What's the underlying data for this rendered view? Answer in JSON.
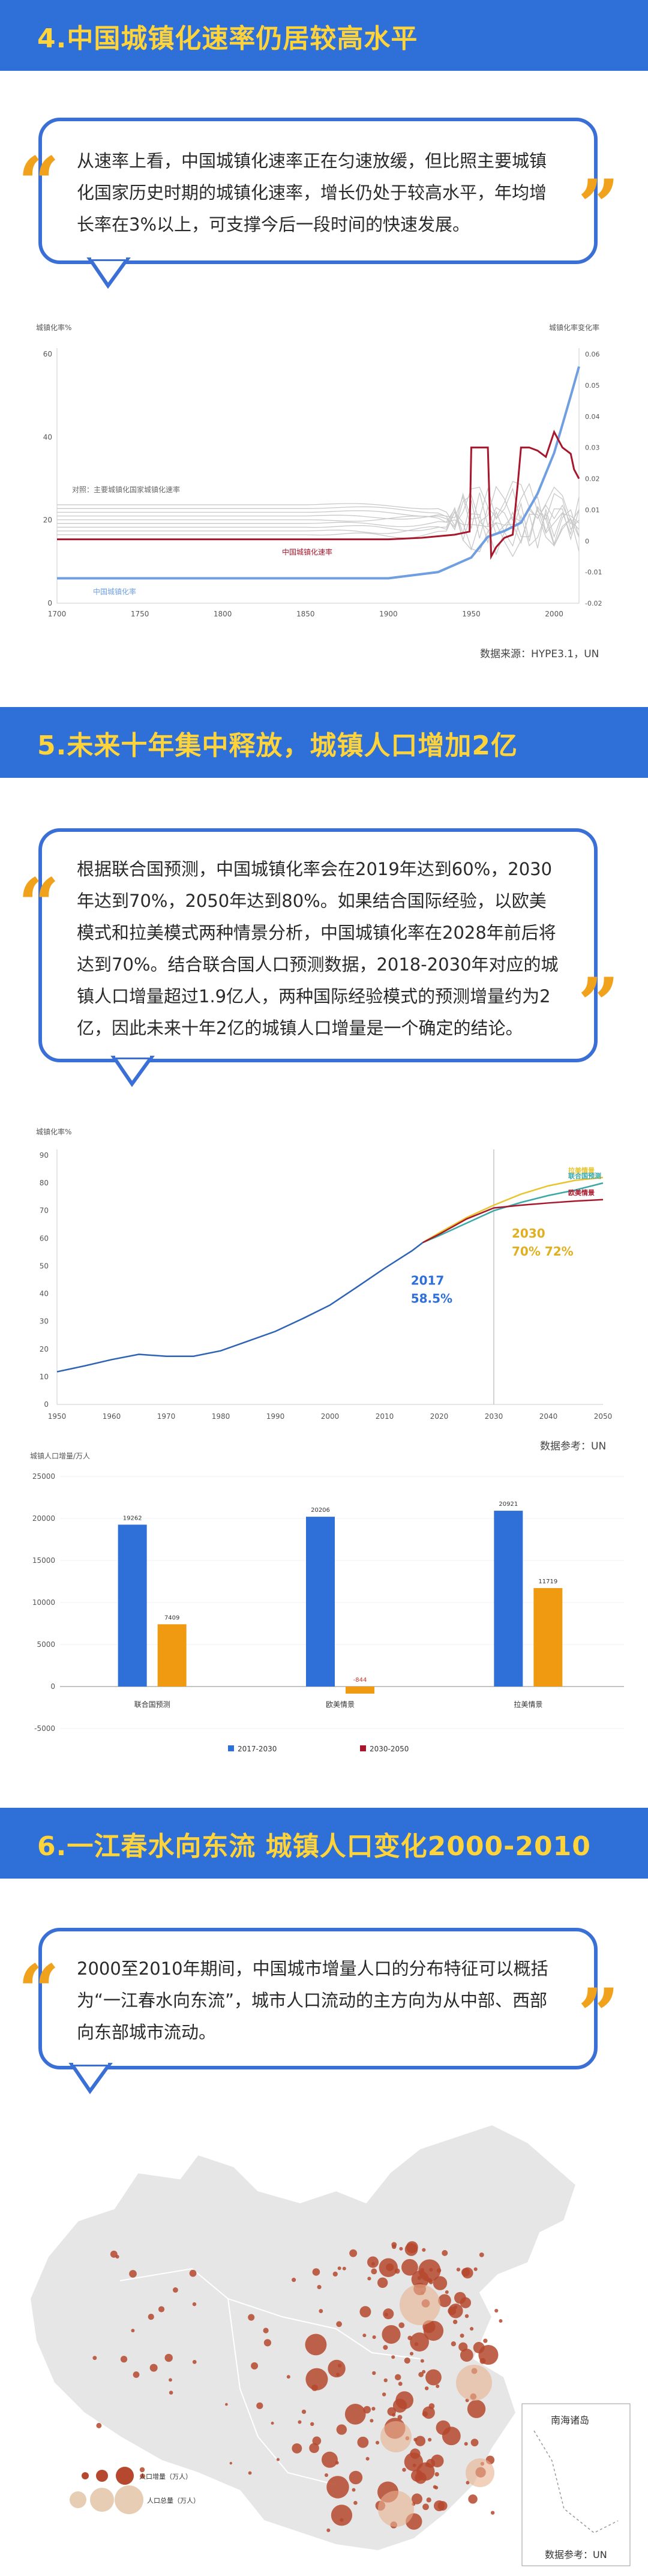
{
  "sections": [
    {
      "title": "4.中国城镇化速率仍居较高水平",
      "quote": "从速率上看，中国城镇化速率正在匀速放缓，但比照主要城镇化国家历史时期的城镇化速率，增长仍处于较高水平，年均增长率在3%以上，可支撑今后一段时间的快速发展。"
    },
    {
      "title": "5.未来十年集中释放，城镇人口增加2亿",
      "quote": "根据联合国预测，中国城镇化率会在2019年达到60%，2030年达到70%，2050年达到80%。如果结合国际经验，以欧美模式和拉美模式两种情景分析，中国城镇化率在2028年前后将达到70%。结合联合国人口预测数据，2018-2030年对应的城镇人口增量超过1.9亿人，两种国际经验模式的预测增量约为2亿，因此未来十年2亿的城镇人口增量是一个确定的结论。"
    },
    {
      "title": "6.一江春水向东流 城镇人口变化2000-2010",
      "quote": "2000至2010年期间，中国城市增量人口的分布特征可以概括为“一江春水向东流”，城市人口流动的主方向为从中部、西部向东部城市流动。"
    }
  ],
  "colors": {
    "banner": "#2f6fd8",
    "banner_text": "#ffd33a",
    "quote_border": "#3a70d6",
    "quote_mark": "#f0a21c",
    "china_rate": "#6f9fe0",
    "china_speed": "#a7162a",
    "grey_lines": "#c8c8c8",
    "un_line": "#2d62b5",
    "latam": "#e8c52d",
    "un_proj": "#3aa8a6",
    "euro": "#a7162a",
    "bar_blue": "#2f6fd8",
    "bar_orange": "#f09a12",
    "map_bubble": "#b5482e"
  },
  "chart_data": [
    {
      "type": "line",
      "title": "",
      "ylabel_left": "城镇化率%",
      "ylabel_right": "城镇化率变化率",
      "x_ticks": [
        "1700",
        "1750",
        "1800",
        "1850",
        "1900",
        "1950",
        "2000"
      ],
      "y_left_ticks": [
        "0",
        "20",
        "40",
        "60"
      ],
      "y_right_ticks": [
        "-0.02",
        "-0.01",
        "0",
        "0.01",
        "0.02",
        "0.03",
        "0.04",
        "0.05",
        "0.06"
      ],
      "xlim": [
        1700,
        2015
      ],
      "ylim_left": [
        0,
        60
      ],
      "ylim_right": [
        -0.02,
        0.06
      ],
      "annotations": [
        "对照：主要城镇化国家城镇化速率",
        "中国城镇化速率",
        "中国城镇化率"
      ],
      "series": [
        {
          "name": "中国城镇化率",
          "axis": "left",
          "x": [
            1700,
            1800,
            1900,
            1930,
            1950,
            1960,
            1970,
            1980,
            1990,
            2000,
            2005,
            2010,
            2015
          ],
          "y": [
            6,
            6,
            6,
            7.5,
            11,
            16,
            17.4,
            19.4,
            26.4,
            36.2,
            43,
            49.9,
            57
          ]
        },
        {
          "name": "中国城镇化速率",
          "axis": "right",
          "x": [
            1700,
            1900,
            1920,
            1940,
            1949,
            1950,
            1951,
            1955,
            1957,
            1960,
            1962,
            1965,
            1970,
            1975,
            1978,
            1980,
            1985,
            1990,
            1995,
            2000,
            2005,
            2010,
            2012,
            2015
          ],
          "y": [
            0.0005,
            0.0005,
            0.001,
            0.002,
            0.003,
            0.03,
            0.03,
            0.03,
            0.03,
            0.03,
            -0.005,
            -0.002,
            0.001,
            0.002,
            0.018,
            0.03,
            0.03,
            0.029,
            0.027,
            0.035,
            0.03,
            0.028,
            0.023,
            0.02
          ]
        }
      ],
      "source": "数据来源：HYPE3.1，UN"
    },
    {
      "type": "line",
      "title": "",
      "ylabel": "城镇化率%",
      "x_ticks": [
        "1950",
        "1960",
        "1970",
        "1980",
        "1990",
        "2000",
        "2010",
        "2020",
        "2030",
        "2040",
        "2050"
      ],
      "y_ticks": [
        "0",
        "10",
        "20",
        "30",
        "40",
        "50",
        "60",
        "70",
        "80",
        "90"
      ],
      "xlim": [
        1950,
        2050
      ],
      "ylim": [
        0,
        90
      ],
      "annotations": [
        "2017",
        "58.5%",
        "2030",
        "70% 72%"
      ],
      "series": [
        {
          "name": "",
          "x": [
            1950,
            1955,
            1960,
            1965,
            1970,
            1975,
            1980,
            1985,
            1990,
            1995,
            2000,
            2005,
            2010,
            2015,
            2017
          ],
          "y": [
            11.8,
            13.9,
            16.2,
            18.1,
            17.4,
            17.4,
            19.4,
            22.9,
            26.4,
            31,
            35.9,
            42.5,
            49.2,
            55.5,
            58.5
          ]
        },
        {
          "name": "拉美情景",
          "x": [
            2017,
            2020,
            2025,
            2030,
            2035,
            2040,
            2045,
            2050
          ],
          "y": [
            58.5,
            62,
            67.5,
            72,
            76,
            79,
            81,
            82
          ]
        },
        {
          "name": "联合国预测",
          "x": [
            2017,
            2020,
            2025,
            2030,
            2035,
            2040,
            2045,
            2050
          ],
          "y": [
            58.5,
            61,
            65.5,
            70,
            73,
            75.5,
            77.5,
            80
          ]
        },
        {
          "name": "欧美情景",
          "x": [
            2017,
            2020,
            2025,
            2030,
            2035,
            2040,
            2045,
            2050
          ],
          "y": [
            58.5,
            61.5,
            67,
            71,
            72,
            72.8,
            73.5,
            74
          ]
        }
      ],
      "source": "数据参考：UN"
    },
    {
      "type": "bar",
      "title": "",
      "ylabel": "城镇人口增量/万人",
      "categories": [
        "联合国预测",
        "欧美情景",
        "拉美情景"
      ],
      "y_ticks": [
        "-5000",
        "0",
        "5000",
        "10000",
        "15000",
        "20000",
        "25000"
      ],
      "ylim": [
        -5000,
        25000
      ],
      "series": [
        {
          "name": "2017-2030",
          "values": [
            19262,
            20206,
            20921
          ]
        },
        {
          "name": "2030-2050",
          "values": [
            7409,
            -844,
            11719
          ]
        }
      ],
      "data_labels": [
        [
          "19262",
          "7409"
        ],
        [
          "20206",
          "-844"
        ],
        [
          "20921",
          "11719"
        ]
      ]
    }
  ],
  "map": {
    "inset_label": "南海诸岛",
    "legend_small": "人口增量（万人）",
    "legend_large": "人口总量（万人）",
    "source": "数据参考：UN"
  }
}
